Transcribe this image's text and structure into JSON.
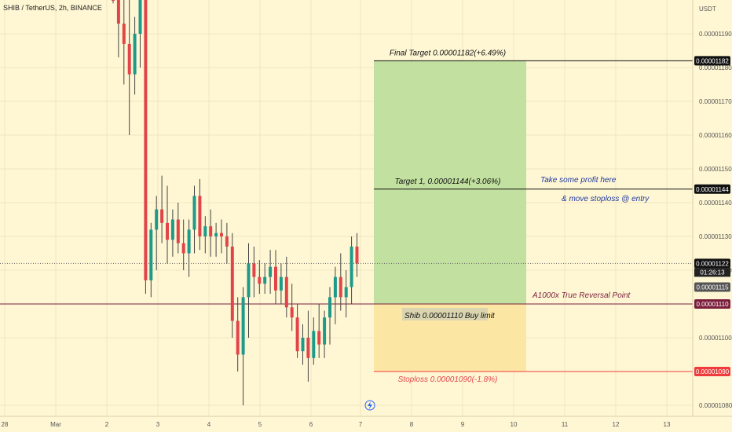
{
  "header": {
    "title": "SHIB / TetherUS, 2h, BINANCE"
  },
  "axis": {
    "currency": "USDT",
    "ticks": [
      {
        "value": 1.19e-05,
        "label": "0.00001190"
      },
      {
        "value": 1.18e-05,
        "label": "0.00001180"
      },
      {
        "value": 1.17e-05,
        "label": "0.00001170"
      },
      {
        "value": 1.16e-05,
        "label": "0.00001160"
      },
      {
        "value": 1.15e-05,
        "label": "0.00001150"
      },
      {
        "value": 1.14e-05,
        "label": "0.00001140"
      },
      {
        "value": 1.13e-05,
        "label": "0.00001130"
      },
      {
        "value": 1.12e-05,
        "label": "0.00001120"
      },
      {
        "value": 1.1e-05,
        "label": "0.00001100"
      },
      {
        "value": 1.08e-05,
        "label": "0.00001080"
      }
    ],
    "price_tags": [
      {
        "value": 1.182e-05,
        "label": "0.00001182",
        "bg": "#111111",
        "fg": "#ffffff"
      },
      {
        "value": 1.144e-05,
        "label": "0.00001144",
        "bg": "#111111",
        "fg": "#ffffff"
      },
      {
        "value": 1.122e-05,
        "label": "0.00001122",
        "bg": "#111111",
        "fg": "#ffffff"
      },
      {
        "value": 1.115e-05,
        "label": "0.00001115",
        "bg": "#555555",
        "fg": "#ffffff"
      },
      {
        "value": 1.11e-05,
        "label": "0.00001110",
        "bg": "#7b1e3c",
        "fg": "#ffffff"
      },
      {
        "value": 1.09e-05,
        "label": "0.00001090",
        "bg": "#ef3b3b",
        "fg": "#ffffff"
      }
    ],
    "countdown": "01:26:13",
    "x_labels": [
      "28",
      "Mar",
      "2",
      "3",
      "4",
      "5",
      "6",
      "7",
      "8",
      "9",
      "10",
      "11",
      "12",
      "13"
    ]
  },
  "annotations": {
    "final_target": "Final Target 0.00001182(+6.49%)",
    "target1": "Target 1, 0.00001144(+3.06%)",
    "take_profit": "Take some profit here",
    "move_stoploss": "& move stoploss @ entry",
    "reversal": "A1000x True Reversal Point",
    "entry": "Shib 0.00001110  Buy limit",
    "stoploss": "Stoploss 0.00001090(-1.8%)"
  },
  "colors": {
    "background": "#fff7d4",
    "profit_zone": "#c2e0a0",
    "loss_zone": "#fce6a4",
    "up_candle": "#1e9a8a",
    "down_candle": "#e1454a",
    "stop_line": "#ef3b3b",
    "reversal_line": "#7b1e3c",
    "note_text": "#1e3aa0"
  },
  "chart_data": {
    "type": "candlestick",
    "symbol": "SHIB / TetherUS",
    "interval": "2h",
    "exchange": "BINANCE",
    "series": [
      [
        1.214e-05,
        1.222e-05,
        1.199e-05,
        1.206e-05
      ],
      [
        1.206e-05,
        1.213e-05,
        1.183e-05,
        1.193e-05
      ],
      [
        1.193e-05,
        1.204e-05,
        1.175e-05,
        1.187e-05
      ],
      [
        1.187e-05,
        1.2e-05,
        1.16e-05,
        1.178e-05
      ],
      [
        1.178e-05,
        1.195e-05,
        1.172e-05,
        1.19e-05
      ],
      [
        1.19e-05,
        1.31e-05,
        1.18e-05,
        1.3e-05
      ],
      [
        1.3e-05,
        1.312e-05,
        1.113e-05,
        1.117e-05
      ],
      [
        1.117e-05,
        1.134e-05,
        1.112e-05,
        1.132e-05
      ],
      [
        1.132e-05,
        1.142e-05,
        1.12e-05,
        1.138e-05
      ],
      [
        1.138e-05,
        1.148e-05,
        1.128e-05,
        1.134e-05
      ],
      [
        1.134e-05,
        1.145e-05,
        1.122e-05,
        1.129e-05
      ],
      [
        1.129e-05,
        1.138e-05,
        1.124e-05,
        1.135e-05
      ],
      [
        1.135e-05,
        1.14e-05,
        1.125e-05,
        1.128e-05
      ],
      [
        1.128e-05,
        1.135e-05,
        1.12e-05,
        1.125e-05
      ],
      [
        1.125e-05,
        1.135e-05,
        1.118e-05,
        1.132e-05
      ],
      [
        1.132e-05,
        1.145e-05,
        1.125e-05,
        1.142e-05
      ],
      [
        1.142e-05,
        1.147e-05,
        1.126e-05,
        1.13e-05
      ],
      [
        1.13e-05,
        1.136e-05,
        1.125e-05,
        1.133e-05
      ],
      [
        1.133e-05,
        1.138e-05,
        1.124e-05,
        1.13e-05
      ],
      [
        1.13e-05,
        1.134e-05,
        1.124e-05,
        1.131e-05
      ],
      [
        1.131e-05,
        1.135e-05,
        1.125e-05,
        1.13e-05
      ],
      [
        1.13e-05,
        1.134e-05,
        1.122e-05,
        1.127e-05
      ],
      [
        1.127e-05,
        1.131e-05,
        1.1e-05,
        1.105e-05
      ],
      [
        1.105e-05,
        1.112e-05,
        1.09e-05,
        1.095e-05
      ],
      [
        1.095e-05,
        1.115e-05,
        1.08e-05,
        1.112e-05
      ],
      [
        1.112e-05,
        1.128e-05,
        1.1e-05,
        1.122e-05
      ],
      [
        1.122e-05,
        1.127e-05,
        1.112e-05,
        1.118e-05
      ],
      [
        1.118e-05,
        1.123e-05,
        1.113e-05,
        1.116e-05
      ],
      [
        1.116e-05,
        1.122e-05,
        1.113e-05,
        1.118e-05
      ],
      [
        1.118e-05,
        1.126e-05,
        1.113e-05,
        1.121e-05
      ],
      [
        1.121e-05,
        1.126e-05,
        1.11e-05,
        1.114e-05
      ],
      [
        1.114e-05,
        1.122e-05,
        1.11e-05,
        1.118e-05
      ],
      [
        1.118e-05,
        1.124e-05,
        1.106e-05,
        1.109e-05
      ],
      [
        1.109e-05,
        1.116e-05,
        1.102e-05,
        1.106e-05
      ],
      [
        1.106e-05,
        1.11e-05,
        1.094e-05,
        1.096e-05
      ],
      [
        1.096e-05,
        1.104e-05,
        1.092e-05,
        1.1e-05
      ],
      [
        1.1e-05,
        1.108e-05,
        1.087e-05,
        1.094e-05
      ],
      [
        1.094e-05,
        1.106e-05,
        1.092e-05,
        1.102e-05
      ],
      [
        1.102e-05,
        1.11e-05,
        1.094e-05,
        1.098e-05
      ],
      [
        1.098e-05,
        1.108e-05,
        1.094e-05,
        1.106e-05
      ],
      [
        1.106e-05,
        1.115e-05,
        1.098e-05,
        1.112e-05
      ],
      [
        1.112e-05,
        1.121e-05,
        1.104e-05,
        1.118e-05
      ],
      [
        1.118e-05,
        1.125e-05,
        1.108e-05,
        1.112e-05
      ],
      [
        1.112e-05,
        1.12e-05,
        1.106e-05,
        1.115e-05
      ],
      [
        1.115e-05,
        1.13e-05,
        1.11e-05,
        1.127e-05
      ],
      [
        1.127e-05,
        1.131e-05,
        1.118e-05,
        1.122e-05
      ]
    ],
    "series_format": [
      "open",
      "high",
      "low",
      "close"
    ],
    "ylim": [
      1.077e-05,
      1.2e-05
    ],
    "levels": [
      {
        "value": 1.182e-05,
        "label": "Final Target 0.00001182(+6.49%)"
      },
      {
        "value": 1.144e-05,
        "label": "Target 1, 0.00001144(+3.06%)"
      },
      {
        "value": 1.11e-05,
        "label": "Shib 0.00001110  Buy limit"
      },
      {
        "value": 1.09e-05,
        "label": "Stoploss 0.00001090(-1.8%)"
      }
    ]
  }
}
